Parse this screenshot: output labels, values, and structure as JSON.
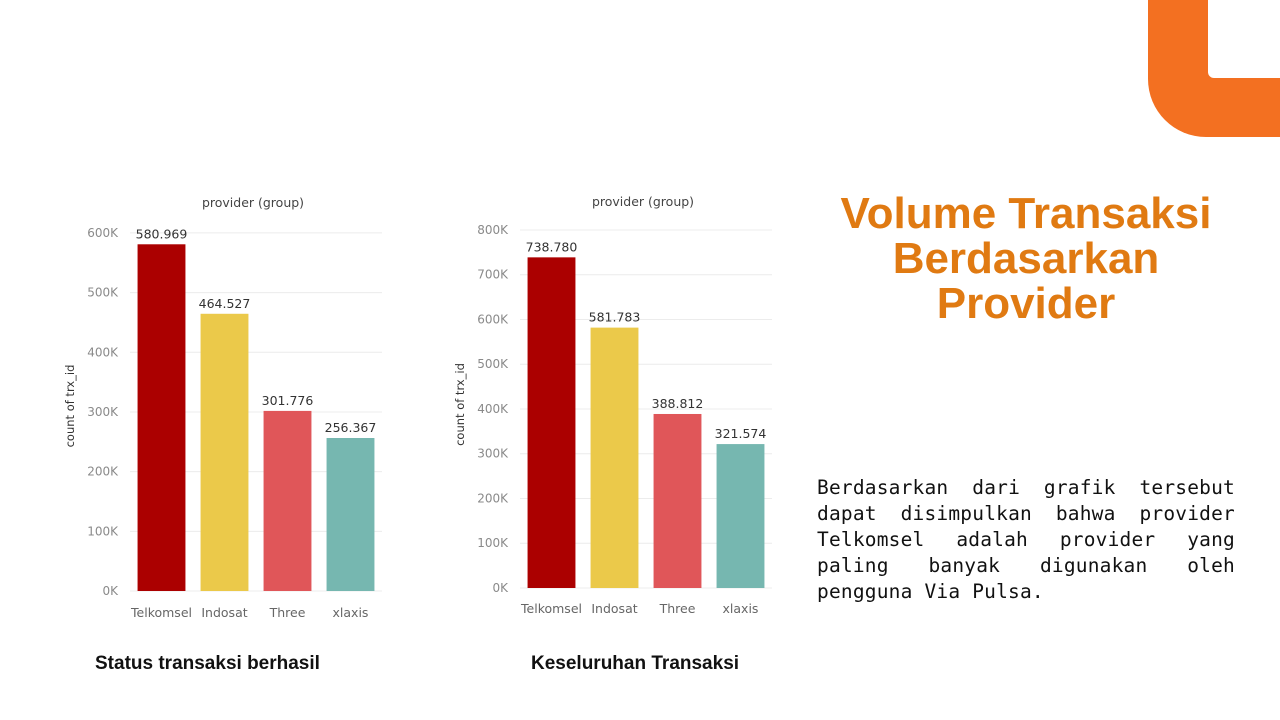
{
  "slide": {
    "title_lines": [
      "Volume Transaksi",
      "Berdasarkan",
      "Provider"
    ],
    "body": "Berdasarkan dari grafik tersebut dapat disimpulkan bahwa provider Telkomsel adalah provider yang paling banyak digunakan oleh pengguna Via Pulsa.",
    "colors": {
      "accent_corner": "#f37021",
      "title": "#e07a12"
    }
  },
  "chart_data": [
    {
      "type": "bar",
      "title": "provider (group)",
      "caption": "Status transaksi berhasil",
      "ylabel": "count of trx_id",
      "categories": [
        "Telkomsel",
        "Indosat",
        "Three",
        "xlaxis"
      ],
      "values": [
        580969,
        464527,
        301776,
        256367
      ],
      "value_labels": [
        "580.969",
        "464.527",
        "301.776",
        "256.367"
      ],
      "colors": [
        "#ab0000",
        "#ebc94a",
        "#e05659",
        "#76b7b0"
      ],
      "yticks": [
        0,
        100000,
        200000,
        300000,
        400000,
        500000,
        600000
      ],
      "ytick_labels": [
        "0K",
        "100K",
        "200K",
        "300K",
        "400K",
        "500K",
        "600K"
      ],
      "ylim": [
        0,
        620000
      ],
      "grid": true
    },
    {
      "type": "bar",
      "title": "provider (group)",
      "caption": "Keseluruhan Transaksi",
      "ylabel": "count of trx_id",
      "categories": [
        "Telkomsel",
        "Indosat",
        "Three",
        "xlaxis"
      ],
      "values": [
        738780,
        581783,
        388812,
        321574
      ],
      "value_labels": [
        "738.780",
        "581.783",
        "388.812",
        "321.574"
      ],
      "colors": [
        "#ab0000",
        "#ebc94a",
        "#e05659",
        "#76b7b0"
      ],
      "yticks": [
        0,
        100000,
        200000,
        300000,
        400000,
        500000,
        600000,
        700000,
        800000
      ],
      "ytick_labels": [
        "0K",
        "100K",
        "200K",
        "300K",
        "400K",
        "500K",
        "600K",
        "700K",
        "800K"
      ],
      "ylim": [
        0,
        820000
      ],
      "grid": true
    }
  ]
}
